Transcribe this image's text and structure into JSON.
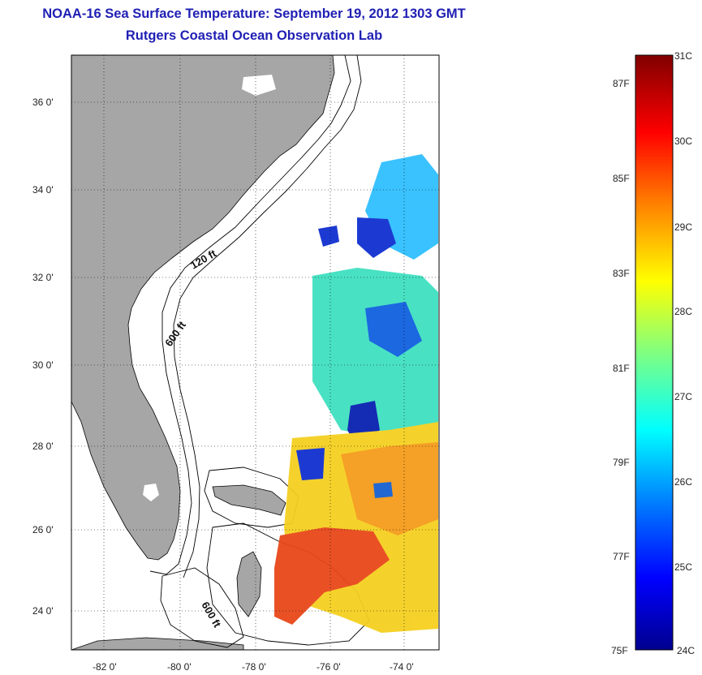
{
  "title": {
    "line1": "NOAA-16 Sea Surface Temperature:  September 19, 2012 1303 GMT",
    "line2": "Rutgers Coastal Ocean Observation Lab"
  },
  "map": {
    "lat_ticks": [
      "36 0'",
      "34 0'",
      "32 0'",
      "30 0'",
      "28 0'",
      "26 0'",
      "24 0'"
    ],
    "lon_ticks": [
      "-82 0'",
      "-80 0'",
      "-78 0'",
      "-76 0'",
      "-74 0'"
    ],
    "depth_labels": [
      "120 ft",
      "600 ft",
      "600 ft"
    ],
    "colors": {
      "land": "#a6a6a6",
      "ocean": "#ffffff",
      "contour": "#000000"
    }
  },
  "colorbar": {
    "celsius_labels": [
      "31C",
      "30C",
      "29C",
      "28C",
      "27C",
      "26C",
      "25C",
      "24C"
    ],
    "fahrenheit_labels": [
      "87F",
      "85F",
      "83F",
      "81F",
      "79F",
      "77F",
      "75F"
    ],
    "colormap": [
      "#00008f",
      "#0000ff",
      "#0080ff",
      "#00ffff",
      "#80ff80",
      "#ffff00",
      "#ff8000",
      "#ff0000",
      "#800000"
    ]
  }
}
